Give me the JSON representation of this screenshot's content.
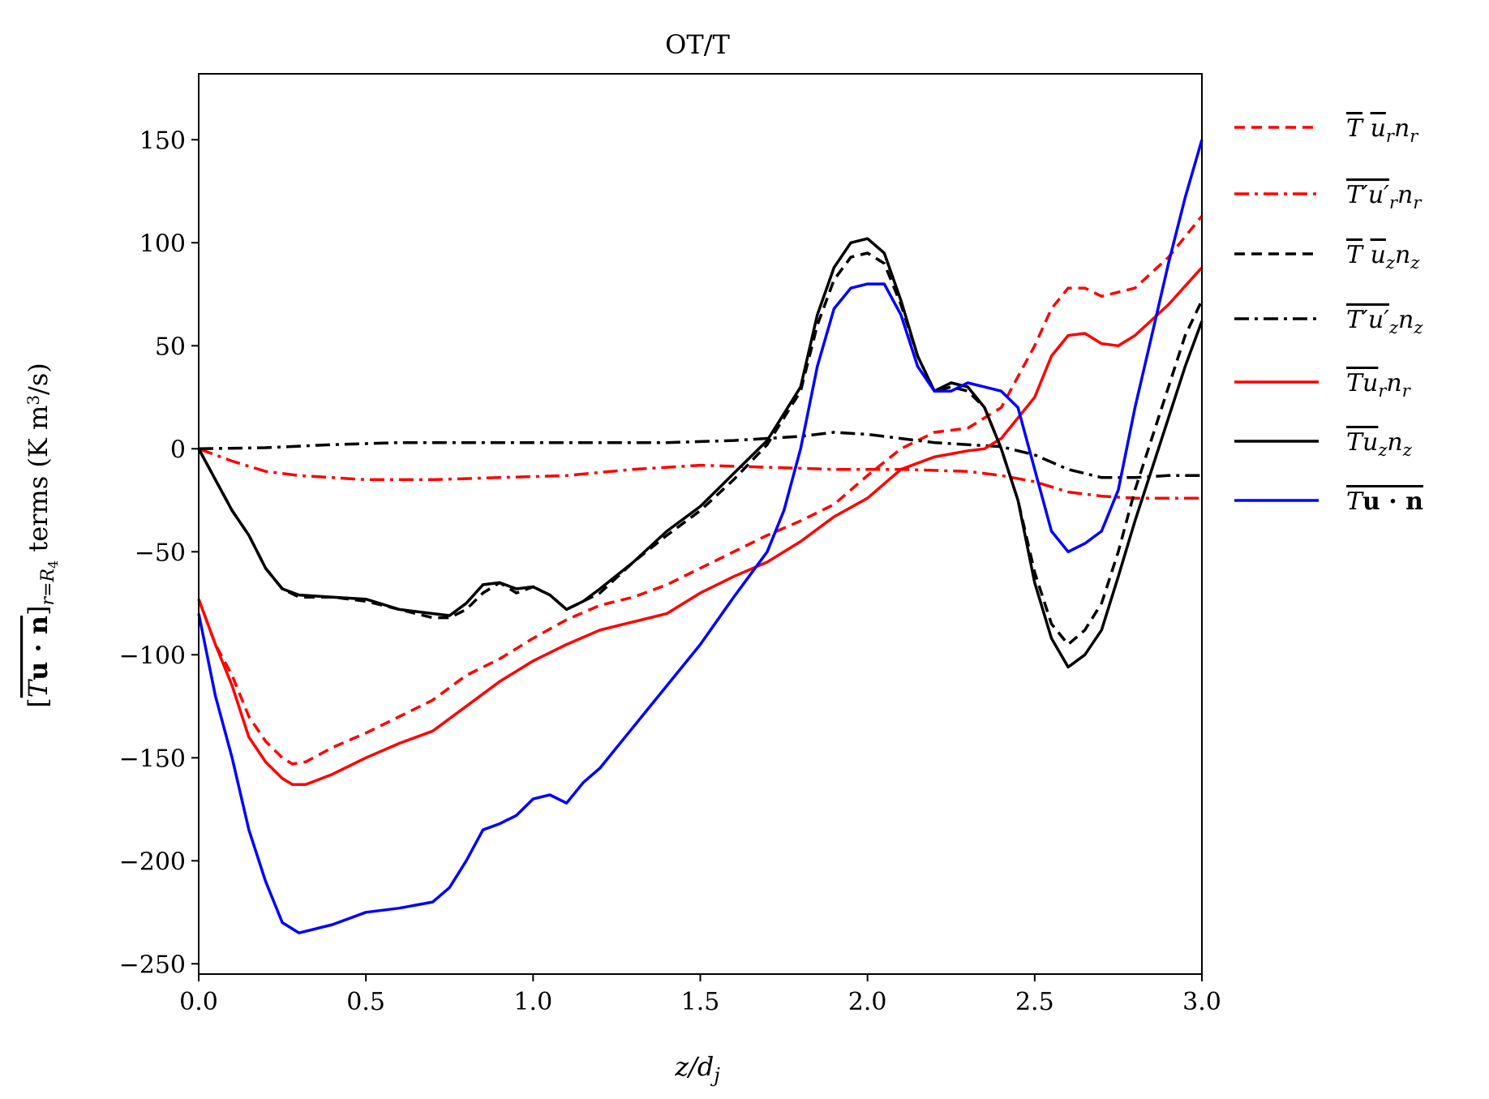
{
  "chart_data": {
    "type": "line",
    "title": "OT/T",
    "xlabel": "z/d_j",
    "ylabel": "[T u·n]_{r=R4} terms (K m^3/s)",
    "xlim": [
      0,
      3.0
    ],
    "ylim": [
      -255,
      182
    ],
    "xticks": [
      0.0,
      0.5,
      1.0,
      1.5,
      2.0,
      2.5,
      3.0
    ],
    "xtick_labels": [
      "0.0",
      "0.5",
      "1.0",
      "1.5",
      "2.0",
      "2.5",
      "3.0"
    ],
    "yticks": [
      150,
      100,
      50,
      0,
      -50,
      -100,
      -150,
      -200,
      -250
    ],
    "ytick_labels": [
      "150",
      "100",
      "50",
      "0",
      "−50",
      "−100",
      "−150",
      "−200",
      "−250"
    ],
    "grid": false,
    "legend_position": "outside-right",
    "series": [
      {
        "name": "T̄ ū_r n_r",
        "color": "#ff0000",
        "dash": "dashed",
        "points": [
          [
            0,
            -73
          ],
          [
            0.05,
            -95
          ],
          [
            0.1,
            -110
          ],
          [
            0.15,
            -130
          ],
          [
            0.2,
            -142
          ],
          [
            0.25,
            -150
          ],
          [
            0.28,
            -153
          ],
          [
            0.32,
            -152
          ],
          [
            0.4,
            -145
          ],
          [
            0.5,
            -138
          ],
          [
            0.6,
            -130
          ],
          [
            0.7,
            -122
          ],
          [
            0.8,
            -110
          ],
          [
            0.9,
            -102
          ],
          [
            1.0,
            -92
          ],
          [
            1.1,
            -83
          ],
          [
            1.2,
            -76
          ],
          [
            1.3,
            -72
          ],
          [
            1.4,
            -66
          ],
          [
            1.5,
            -58
          ],
          [
            1.6,
            -50
          ],
          [
            1.7,
            -42
          ],
          [
            1.8,
            -35
          ],
          [
            1.9,
            -27
          ],
          [
            2.0,
            -13
          ],
          [
            2.1,
            0
          ],
          [
            2.2,
            8
          ],
          [
            2.3,
            10
          ],
          [
            2.4,
            20
          ],
          [
            2.5,
            50
          ],
          [
            2.55,
            68
          ],
          [
            2.6,
            78
          ],
          [
            2.65,
            78
          ],
          [
            2.7,
            74
          ],
          [
            2.8,
            78
          ],
          [
            2.9,
            93
          ],
          [
            3.0,
            113
          ]
        ]
      },
      {
        "name": "T'u'_r n_r (mean)",
        "color": "#ff0000",
        "dash": "dashdot",
        "points": [
          [
            0,
            0
          ],
          [
            0.1,
            -6
          ],
          [
            0.2,
            -11
          ],
          [
            0.3,
            -13
          ],
          [
            0.5,
            -15
          ],
          [
            0.7,
            -15
          ],
          [
            0.9,
            -14
          ],
          [
            1.1,
            -13
          ],
          [
            1.3,
            -10
          ],
          [
            1.5,
            -8
          ],
          [
            1.7,
            -9
          ],
          [
            1.9,
            -10
          ],
          [
            2.1,
            -10
          ],
          [
            2.3,
            -11
          ],
          [
            2.4,
            -13
          ],
          [
            2.5,
            -16
          ],
          [
            2.6,
            -21
          ],
          [
            2.7,
            -23
          ],
          [
            2.8,
            -24
          ],
          [
            3.0,
            -24
          ]
        ]
      },
      {
        "name": "T̄ ū_z n_z",
        "color": "#000000",
        "dash": "dashed",
        "points": [
          [
            0,
            0
          ],
          [
            0.05,
            -15
          ],
          [
            0.1,
            -30
          ],
          [
            0.15,
            -42
          ],
          [
            0.2,
            -58
          ],
          [
            0.25,
            -68
          ],
          [
            0.3,
            -72
          ],
          [
            0.4,
            -72
          ],
          [
            0.5,
            -74
          ],
          [
            0.6,
            -78
          ],
          [
            0.7,
            -82
          ],
          [
            0.75,
            -82
          ],
          [
            0.8,
            -78
          ],
          [
            0.85,
            -70
          ],
          [
            0.9,
            -65
          ],
          [
            0.95,
            -70
          ],
          [
            1.0,
            -67
          ],
          [
            1.05,
            -71
          ],
          [
            1.1,
            -78
          ],
          [
            1.15,
            -74
          ],
          [
            1.2,
            -70
          ],
          [
            1.3,
            -55
          ],
          [
            1.4,
            -42
          ],
          [
            1.5,
            -30
          ],
          [
            1.6,
            -15
          ],
          [
            1.7,
            2
          ],
          [
            1.8,
            28
          ],
          [
            1.85,
            60
          ],
          [
            1.9,
            82
          ],
          [
            1.95,
            93
          ],
          [
            2.0,
            95
          ],
          [
            2.05,
            90
          ],
          [
            2.1,
            70
          ],
          [
            2.15,
            45
          ],
          [
            2.2,
            28
          ],
          [
            2.25,
            30
          ],
          [
            2.3,
            28
          ],
          [
            2.35,
            20
          ],
          [
            2.4,
            0
          ],
          [
            2.45,
            -25
          ],
          [
            2.5,
            -60
          ],
          [
            2.55,
            -85
          ],
          [
            2.6,
            -95
          ],
          [
            2.65,
            -88
          ],
          [
            2.7,
            -75
          ],
          [
            2.75,
            -50
          ],
          [
            2.8,
            -20
          ],
          [
            2.85,
            5
          ],
          [
            2.9,
            30
          ],
          [
            2.95,
            55
          ],
          [
            3.0,
            72
          ]
        ]
      },
      {
        "name": "T'u'_z n_z (mean)",
        "color": "#000000",
        "dash": "dashdot",
        "points": [
          [
            0,
            0
          ],
          [
            0.2,
            0.5
          ],
          [
            0.4,
            2
          ],
          [
            0.6,
            3
          ],
          [
            0.8,
            3
          ],
          [
            1.0,
            3
          ],
          [
            1.2,
            3
          ],
          [
            1.4,
            3
          ],
          [
            1.6,
            4
          ],
          [
            1.8,
            6
          ],
          [
            1.9,
            8
          ],
          [
            2.0,
            7
          ],
          [
            2.1,
            5
          ],
          [
            2.2,
            3
          ],
          [
            2.3,
            2
          ],
          [
            2.4,
            1
          ],
          [
            2.5,
            -3
          ],
          [
            2.6,
            -10
          ],
          [
            2.7,
            -14
          ],
          [
            2.8,
            -14
          ],
          [
            2.9,
            -13
          ],
          [
            3.0,
            -13
          ]
        ]
      },
      {
        "name": "T u_r n_r (mean)",
        "color": "#ff0000",
        "dash": "solid",
        "points": [
          [
            0,
            -73
          ],
          [
            0.05,
            -95
          ],
          [
            0.1,
            -115
          ],
          [
            0.15,
            -140
          ],
          [
            0.2,
            -152
          ],
          [
            0.25,
            -160
          ],
          [
            0.28,
            -163
          ],
          [
            0.32,
            -163
          ],
          [
            0.4,
            -158
          ],
          [
            0.5,
            -150
          ],
          [
            0.6,
            -143
          ],
          [
            0.7,
            -137
          ],
          [
            0.8,
            -125
          ],
          [
            0.9,
            -113
          ],
          [
            1.0,
            -103
          ],
          [
            1.1,
            -95
          ],
          [
            1.2,
            -88
          ],
          [
            1.3,
            -84
          ],
          [
            1.4,
            -80
          ],
          [
            1.5,
            -70
          ],
          [
            1.6,
            -62
          ],
          [
            1.7,
            -55
          ],
          [
            1.8,
            -45
          ],
          [
            1.9,
            -33
          ],
          [
            2.0,
            -24
          ],
          [
            2.1,
            -10
          ],
          [
            2.2,
            -4
          ],
          [
            2.3,
            -1
          ],
          [
            2.35,
            0
          ],
          [
            2.4,
            5
          ],
          [
            2.5,
            25
          ],
          [
            2.55,
            45
          ],
          [
            2.6,
            55
          ],
          [
            2.65,
            56
          ],
          [
            2.7,
            51
          ],
          [
            2.75,
            50
          ],
          [
            2.8,
            55
          ],
          [
            2.9,
            70
          ],
          [
            3.0,
            88
          ]
        ]
      },
      {
        "name": "T u_z n_z (mean)",
        "color": "#000000",
        "dash": "solid",
        "points": [
          [
            0,
            0
          ],
          [
            0.05,
            -15
          ],
          [
            0.1,
            -30
          ],
          [
            0.15,
            -42
          ],
          [
            0.2,
            -58
          ],
          [
            0.25,
            -68
          ],
          [
            0.3,
            -71
          ],
          [
            0.4,
            -72
          ],
          [
            0.5,
            -73
          ],
          [
            0.6,
            -78
          ],
          [
            0.7,
            -80
          ],
          [
            0.75,
            -81
          ],
          [
            0.8,
            -75
          ],
          [
            0.85,
            -66
          ],
          [
            0.9,
            -65
          ],
          [
            0.95,
            -68
          ],
          [
            1.0,
            -67
          ],
          [
            1.05,
            -71
          ],
          [
            1.1,
            -78
          ],
          [
            1.15,
            -74
          ],
          [
            1.2,
            -68
          ],
          [
            1.3,
            -55
          ],
          [
            1.4,
            -40
          ],
          [
            1.5,
            -28
          ],
          [
            1.6,
            -12
          ],
          [
            1.7,
            4
          ],
          [
            1.8,
            30
          ],
          [
            1.85,
            65
          ],
          [
            1.9,
            88
          ],
          [
            1.95,
            100
          ],
          [
            2.0,
            102
          ],
          [
            2.05,
            95
          ],
          [
            2.1,
            72
          ],
          [
            2.15,
            45
          ],
          [
            2.2,
            28
          ],
          [
            2.25,
            32
          ],
          [
            2.3,
            30
          ],
          [
            2.35,
            20
          ],
          [
            2.4,
            0
          ],
          [
            2.45,
            -25
          ],
          [
            2.5,
            -65
          ],
          [
            2.55,
            -92
          ],
          [
            2.6,
            -106
          ],
          [
            2.65,
            -100
          ],
          [
            2.7,
            -88
          ],
          [
            2.75,
            -62
          ],
          [
            2.8,
            -35
          ],
          [
            2.85,
            -10
          ],
          [
            2.9,
            15
          ],
          [
            2.95,
            40
          ],
          [
            3.0,
            62
          ]
        ]
      },
      {
        "name": "T u·n (mean)",
        "color": "#0000ff",
        "dash": "solid",
        "points": [
          [
            0,
            -80
          ],
          [
            0.05,
            -120
          ],
          [
            0.1,
            -150
          ],
          [
            0.15,
            -185
          ],
          [
            0.2,
            -210
          ],
          [
            0.25,
            -230
          ],
          [
            0.3,
            -235
          ],
          [
            0.4,
            -231
          ],
          [
            0.5,
            -225
          ],
          [
            0.6,
            -223
          ],
          [
            0.7,
            -220
          ],
          [
            0.75,
            -213
          ],
          [
            0.8,
            -200
          ],
          [
            0.85,
            -185
          ],
          [
            0.9,
            -182
          ],
          [
            0.95,
            -178
          ],
          [
            1.0,
            -170
          ],
          [
            1.05,
            -168
          ],
          [
            1.1,
            -172
          ],
          [
            1.15,
            -162
          ],
          [
            1.2,
            -155
          ],
          [
            1.3,
            -135
          ],
          [
            1.4,
            -115
          ],
          [
            1.5,
            -95
          ],
          [
            1.6,
            -72
          ],
          [
            1.7,
            -50
          ],
          [
            1.75,
            -30
          ],
          [
            1.8,
            0
          ],
          [
            1.85,
            40
          ],
          [
            1.9,
            68
          ],
          [
            1.95,
            78
          ],
          [
            2.0,
            80
          ],
          [
            2.05,
            80
          ],
          [
            2.1,
            65
          ],
          [
            2.15,
            40
          ],
          [
            2.2,
            28
          ],
          [
            2.25,
            28
          ],
          [
            2.3,
            32
          ],
          [
            2.35,
            30
          ],
          [
            2.4,
            28
          ],
          [
            2.45,
            20
          ],
          [
            2.5,
            -10
          ],
          [
            2.55,
            -40
          ],
          [
            2.6,
            -50
          ],
          [
            2.65,
            -46
          ],
          [
            2.7,
            -40
          ],
          [
            2.75,
            -20
          ],
          [
            2.8,
            20
          ],
          [
            2.85,
            55
          ],
          [
            2.9,
            90
          ],
          [
            2.95,
            122
          ],
          [
            3.0,
            150
          ]
        ]
      }
    ]
  }
}
